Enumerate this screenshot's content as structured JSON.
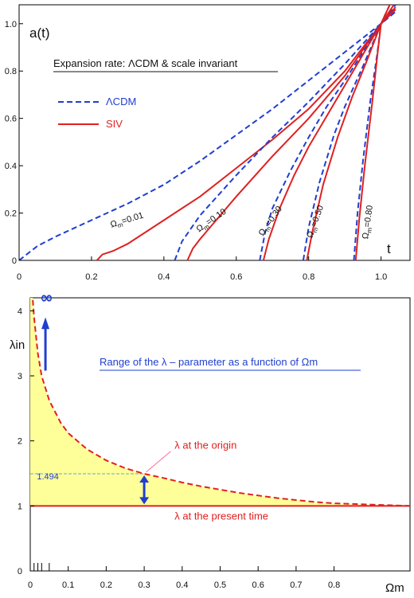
{
  "chart_data": [
    {
      "type": "line",
      "title": "Expansion rate:  ΛCDM & scale invariant",
      "ylabel": "a(t)",
      "xlabel": "t",
      "xlim": [
        0,
        1.08
      ],
      "ylim": [
        0,
        1.08
      ],
      "xticks": [
        "0",
        "0.2",
        "0.4",
        "0.6",
        "0.8",
        "1.0"
      ],
      "yticks": [
        "0",
        "0.2",
        "0.4",
        "0.6",
        "0.8",
        "1.0"
      ],
      "legend": {
        "placement": "top-left",
        "entries": [
          {
            "label": "ΛCDM",
            "color": "#1f3fd0",
            "style": "dashed"
          },
          {
            "label": "SIV",
            "color": "#e02020",
            "style": "solid"
          }
        ]
      },
      "series": [
        {
          "name": "ΛCDM Ωm=0.01",
          "group": "ΛCDM",
          "x": [
            0,
            0.05,
            0.1,
            0.2,
            0.3,
            0.4,
            0.5,
            0.6,
            0.7,
            0.8,
            0.9,
            1.0,
            1.04
          ],
          "y": [
            0,
            0.06,
            0.1,
            0.17,
            0.24,
            0.32,
            0.42,
            0.53,
            0.64,
            0.76,
            0.88,
            1.0,
            1.05
          ]
        },
        {
          "name": "SIV Ωm=0.01",
          "group": "SIV",
          "x": [
            0.215,
            0.23,
            0.26,
            0.3,
            0.4,
            0.5,
            0.6,
            0.7,
            0.8,
            0.9,
            1.0,
            1.04
          ],
          "y": [
            0,
            0.025,
            0.04,
            0.07,
            0.17,
            0.27,
            0.39,
            0.51,
            0.64,
            0.8,
            1.0,
            1.06
          ]
        },
        {
          "name": "ΛCDM Ωm=0.10",
          "group": "ΛCDM",
          "x": [
            0.43,
            0.45,
            0.5,
            0.6,
            0.7,
            0.8,
            0.9,
            1.0,
            1.04
          ],
          "y": [
            0,
            0.08,
            0.19,
            0.36,
            0.52,
            0.67,
            0.83,
            1.0,
            1.06
          ]
        },
        {
          "name": "SIV Ωm=0.10",
          "group": "SIV",
          "x": [
            0.465,
            0.48,
            0.5,
            0.6,
            0.7,
            0.8,
            0.9,
            1.0,
            1.04
          ],
          "y": [
            0,
            0.05,
            0.09,
            0.27,
            0.44,
            0.6,
            0.78,
            1.0,
            1.06
          ]
        },
        {
          "name": "ΛCDM Ωm=0.30",
          "group": "ΛCDM",
          "x": [
            0.665,
            0.68,
            0.7,
            0.75,
            0.8,
            0.85,
            0.9,
            0.95,
            1.0,
            1.04
          ],
          "y": [
            0,
            0.12,
            0.22,
            0.38,
            0.52,
            0.65,
            0.76,
            0.88,
            1.0,
            1.07
          ]
        },
        {
          "name": "SIV Ωm=0.30",
          "group": "SIV",
          "x": [
            0.675,
            0.69,
            0.72,
            0.76,
            0.8,
            0.85,
            0.9,
            0.95,
            1.0,
            1.04
          ],
          "y": [
            0,
            0.09,
            0.22,
            0.36,
            0.48,
            0.61,
            0.74,
            0.87,
            1.0,
            1.07
          ]
        },
        {
          "name": "ΛCDM Ωm=0.50",
          "group": "ΛCDM",
          "x": [
            0.785,
            0.8,
            0.83,
            0.87,
            0.9,
            0.95,
            1.0,
            1.04
          ],
          "y": [
            0,
            0.14,
            0.33,
            0.53,
            0.65,
            0.82,
            1.0,
            1.08
          ]
        },
        {
          "name": "SIV Ωm=0.50",
          "group": "SIV",
          "x": [
            0.795,
            0.81,
            0.84,
            0.88,
            0.92,
            0.96,
            1.0,
            1.04
          ],
          "y": [
            0,
            0.12,
            0.32,
            0.52,
            0.69,
            0.84,
            1.0,
            1.09
          ]
        },
        {
          "name": "ΛCDM Ωm=0.80",
          "group": "ΛCDM",
          "x": [
            0.925,
            0.935,
            0.95,
            0.97,
            0.99,
            1.0,
            1.03
          ],
          "y": [
            0,
            0.2,
            0.42,
            0.67,
            0.88,
            1.0,
            1.1
          ]
        },
        {
          "name": "SIV Ωm=0.80",
          "group": "SIV",
          "x": [
            0.93,
            0.94,
            0.955,
            0.975,
            0.99,
            1.0,
            1.03
          ],
          "y": [
            0,
            0.18,
            0.4,
            0.66,
            0.87,
            1.0,
            1.1
          ]
        }
      ],
      "annotations": [
        {
          "text": "Ωm=0.01",
          "x": 0.3,
          "y": 0.16,
          "angle": -17
        },
        {
          "text": "Ωm=0.10",
          "x": 0.535,
          "y": 0.16,
          "angle": -35
        },
        {
          "text": "Ωm=0.30",
          "x": 0.7,
          "y": 0.16,
          "angle": -55
        },
        {
          "text": "Ωm=0.50",
          "x": 0.825,
          "y": 0.16,
          "angle": -70
        },
        {
          "text": "Ωm=0.80",
          "x": 0.97,
          "y": 0.16,
          "angle": -82
        }
      ]
    },
    {
      "type": "area",
      "title": "Range of the  λ – parameter as a function of  Ωm",
      "ylabel": "λin",
      "xlabel": "Ωm",
      "xlim": [
        0,
        1.0
      ],
      "ylim": [
        0,
        4.2
      ],
      "xticks": [
        "0",
        "0.1",
        "0.2",
        "0.3",
        "0.4",
        "0.5",
        "0.6",
        "0.7",
        "0.8"
      ],
      "yticks": [
        "0",
        "1",
        "2",
        "3",
        "4"
      ],
      "series": [
        {
          "name": "λ at the origin",
          "color": "#e02020",
          "style": "dashed",
          "fill": "#ffff99",
          "x": [
            0.005,
            0.01,
            0.02,
            0.03,
            0.05,
            0.08,
            0.1,
            0.15,
            0.2,
            0.25,
            0.3,
            0.35,
            0.4,
            0.45,
            0.5,
            0.55,
            0.6,
            0.65,
            0.7,
            0.75,
            0.8,
            0.85,
            0.9,
            0.95,
            1.0
          ],
          "y": [
            4.3,
            3.9,
            3.35,
            3.0,
            2.62,
            2.28,
            2.12,
            1.87,
            1.7,
            1.58,
            1.494,
            1.43,
            1.36,
            1.3,
            1.25,
            1.2,
            1.16,
            1.12,
            1.09,
            1.06,
            1.04,
            1.03,
            1.02,
            1.01,
            1.0
          ]
        },
        {
          "name": "λ at the present time",
          "color": "#e02020",
          "style": "solid",
          "x": [
            0,
            1.0
          ],
          "y": [
            1,
            1
          ]
        }
      ],
      "annotations": [
        {
          "text": "λ at the origin",
          "x": 0.38,
          "y": 1.88
        },
        {
          "text": "λ at the present time",
          "x": 0.38,
          "y": 0.79
        },
        {
          "text": "1.494",
          "x": 0.005,
          "y": 1.41
        },
        {
          "text": "∞",
          "x": 0.04,
          "y": 4.12
        }
      ],
      "marker_value": {
        "x": 0.3,
        "y": 1.494
      }
    }
  ]
}
